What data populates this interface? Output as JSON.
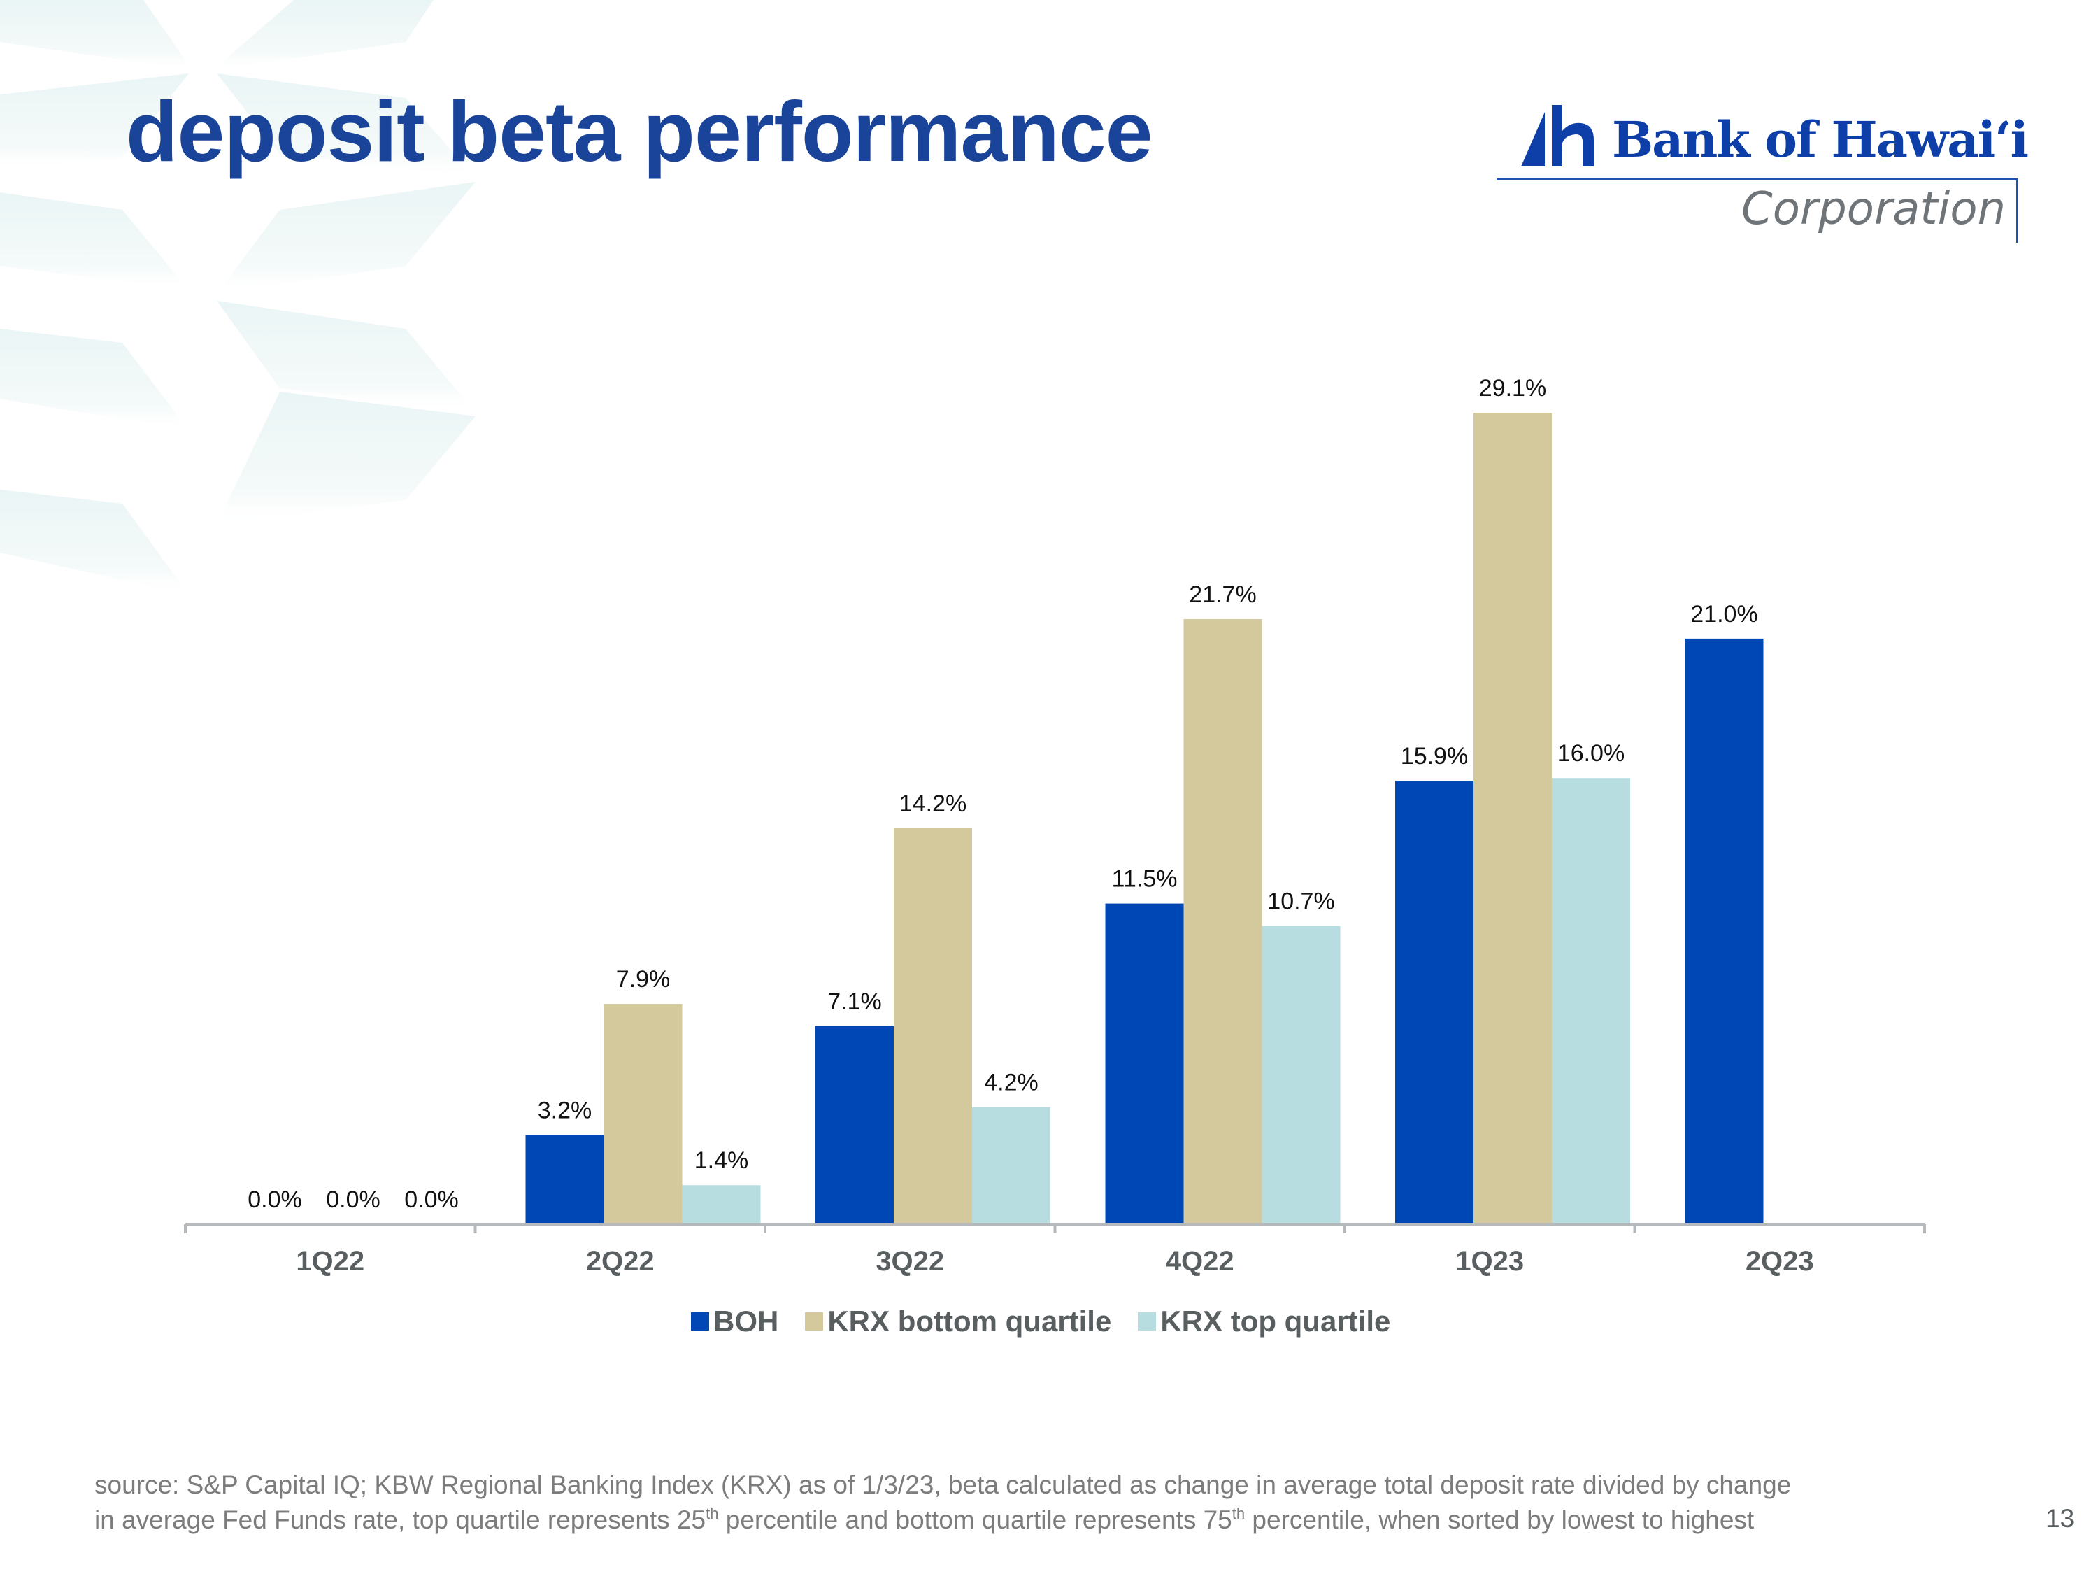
{
  "slide": {
    "title": "deposit beta performance",
    "page_number": "13"
  },
  "logo": {
    "name": "Bank of Hawaiʻi",
    "subtitle": "Corporation",
    "icon": "bank-of-hawaii-h-sail-icon"
  },
  "colors": {
    "title": "#1a449a",
    "BOH": "#0047b6",
    "KRX bottom quartile": "#d3c99d",
    "KRX top quartile": "#b8dde0",
    "axis": "#b5b9bb",
    "category_label": "#595f61",
    "footnote": "#7c7c7c"
  },
  "chart_data": {
    "type": "bar",
    "title": "deposit beta performance",
    "xlabel": "",
    "ylabel": "",
    "categories": [
      "1Q22",
      "2Q22",
      "3Q22",
      "4Q22",
      "1Q23",
      "2Q23"
    ],
    "series": [
      {
        "name": "BOH",
        "values": [
          0.0,
          3.2,
          7.1,
          11.5,
          15.9,
          21.0
        ],
        "labels": [
          "0.0%",
          "3.2%",
          "7.1%",
          "11.5%",
          "15.9%",
          "21.0%"
        ]
      },
      {
        "name": "KRX bottom quartile",
        "values": [
          0.0,
          7.9,
          14.2,
          21.7,
          29.1,
          null
        ],
        "labels": [
          "0.0%",
          "7.9%",
          "14.2%",
          "21.7%",
          "29.1%",
          null
        ]
      },
      {
        "name": "KRX top quartile",
        "values": [
          0.0,
          1.4,
          4.2,
          10.7,
          16.0,
          null
        ],
        "labels": [
          "0.0%",
          "1.4%",
          "4.2%",
          "10.7%",
          "16.0%",
          null
        ]
      }
    ],
    "value_unit": "%",
    "ylim": [
      0,
      30
    ],
    "y_axis_visible": false,
    "grid": false,
    "data_labels": true,
    "legend": {
      "position": "bottom",
      "entries": [
        "BOH",
        "KRX bottom quartile",
        "KRX top quartile"
      ]
    }
  },
  "footnote": {
    "line1": "source: S&P Capital IQ; KBW Regional Banking Index (KRX) as of 1/3/23, beta calculated as change in average total deposit rate divided by change",
    "line2_a": "in average Fed Funds rate, top quartile represents 25",
    "line2_sup1": "th",
    "line2_b": " percentile and bottom quartile represents 75",
    "line2_sup2": "th",
    "line2_c": " percentile, when sorted by lowest to highest"
  }
}
